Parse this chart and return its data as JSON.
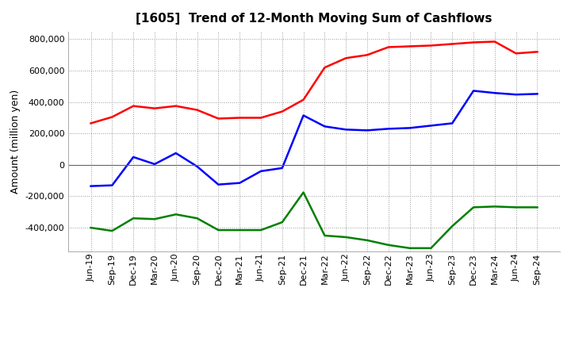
{
  "title": "[1605]  Trend of 12-Month Moving Sum of Cashflows",
  "ylabel": "Amount (million yen)",
  "x_labels": [
    "Jun-19",
    "Sep-19",
    "Dec-19",
    "Mar-20",
    "Jun-20",
    "Sep-20",
    "Dec-20",
    "Mar-21",
    "Jun-21",
    "Sep-21",
    "Dec-21",
    "Mar-22",
    "Jun-22",
    "Sep-22",
    "Dec-22",
    "Mar-23",
    "Jun-23",
    "Sep-23",
    "Dec-23",
    "Mar-24",
    "Jun-24",
    "Sep-24"
  ],
  "operating": [
    265000,
    305000,
    375000,
    360000,
    375000,
    350000,
    295000,
    300000,
    300000,
    340000,
    415000,
    620000,
    680000,
    700000,
    750000,
    755000,
    760000,
    770000,
    780000,
    785000,
    710000,
    720000
  ],
  "investing": [
    -400000,
    -420000,
    -340000,
    -345000,
    -315000,
    -340000,
    -415000,
    -415000,
    -415000,
    -365000,
    -175000,
    -450000,
    -460000,
    -480000,
    -510000,
    -530000,
    -530000,
    -390000,
    -270000,
    -265000,
    -270000,
    -270000
  ],
  "free": [
    -135000,
    -130000,
    50000,
    5000,
    75000,
    -10000,
    -125000,
    -115000,
    -40000,
    -20000,
    315000,
    245000,
    225000,
    220000,
    230000,
    235000,
    250000,
    265000,
    472000,
    458000,
    448000,
    452000
  ],
  "operating_color": "#ff0000",
  "investing_color": "#008000",
  "free_color": "#0000ff",
  "ylim": [
    -550000,
    850000
  ],
  "yticks": [
    -400000,
    -200000,
    0,
    200000,
    400000,
    600000,
    800000
  ],
  "background_color": "#ffffff",
  "grid_color": "#999999",
  "title_fontsize": 11,
  "label_fontsize": 9,
  "tick_fontsize": 8,
  "legend_fontsize": 9,
  "line_width": 1.8
}
